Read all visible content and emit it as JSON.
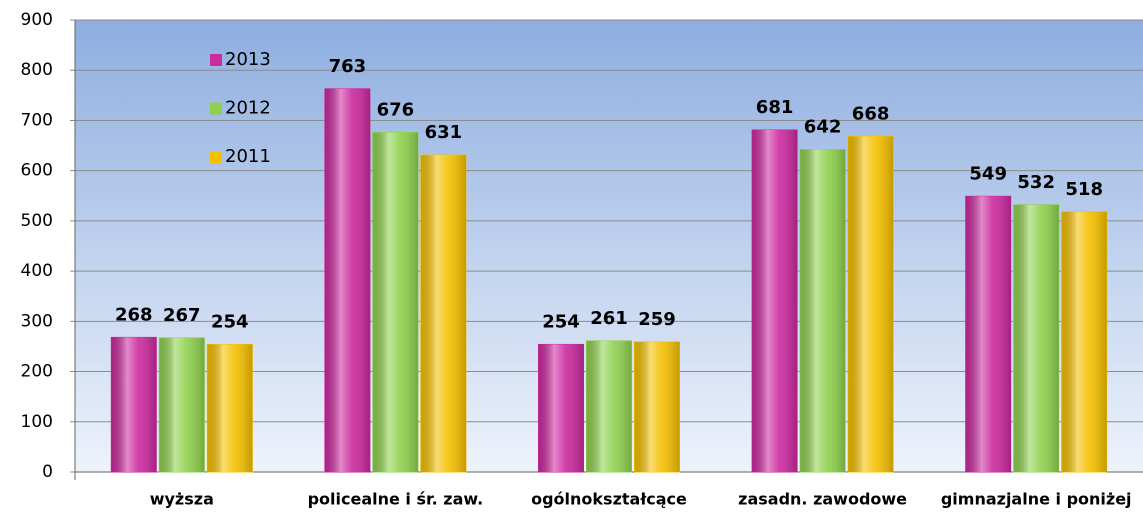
{
  "chart_data": {
    "type": "bar",
    "categories": [
      "wyższa",
      "policealne i śr. zaw.",
      "ogólnokształcące",
      "zasadn. zawodowe",
      "gimnazjalne i poniżej"
    ],
    "series": [
      {
        "name": "2013",
        "color": "#cc2a9f",
        "values": [
          268,
          763,
          254,
          681,
          549
        ]
      },
      {
        "name": "2012",
        "color": "#8fd14f",
        "values": [
          267,
          676,
          261,
          642,
          532
        ]
      },
      {
        "name": "2011",
        "color": "#f5c000",
        "values": [
          254,
          631,
          259,
          668,
          518
        ]
      }
    ],
    "ylim": [
      0,
      900
    ],
    "yticks": [
      0,
      100,
      200,
      300,
      400,
      500,
      600,
      700,
      800,
      900
    ],
    "grid": true,
    "legend": "top-left"
  }
}
